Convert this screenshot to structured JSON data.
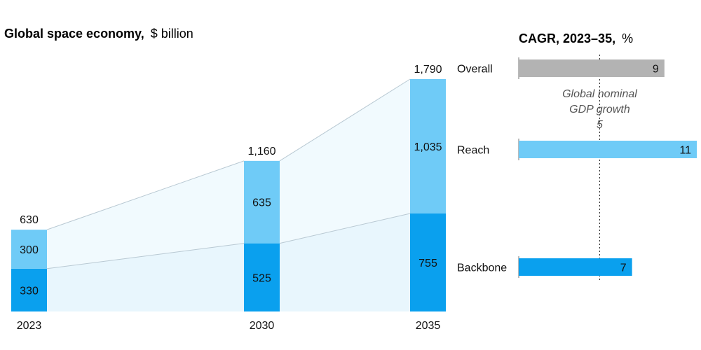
{
  "chart_data": [
    {
      "type": "bar",
      "stacked": true,
      "title": "Global space economy,",
      "title_unit": "$ billion",
      "categories": [
        "2023",
        "2030",
        "2035"
      ],
      "series": [
        {
          "name": "Backbone",
          "values": [
            330,
            525,
            755
          ],
          "color": "#0aa0ee"
        },
        {
          "name": "Reach",
          "values": [
            300,
            635,
            1035
          ],
          "color": "#6fcbf7"
        }
      ],
      "totals": [
        "630",
        "1,160",
        "1,790"
      ],
      "value_labels": {
        "Backbone": [
          "330",
          "525",
          "755"
        ],
        "Reach": [
          "300",
          "635",
          "1,035"
        ]
      },
      "area_fill_color": "#e6f5fd",
      "ylim": [
        0,
        1790
      ],
      "grid": false
    },
    {
      "type": "bar",
      "orientation": "horizontal",
      "title": "CAGR, 2023–35,",
      "title_unit": "%",
      "categories": [
        "Overall",
        "Reach",
        "Backbone"
      ],
      "values": [
        9,
        11,
        7
      ],
      "colors": [
        "#b3b3b3",
        "#6fcbf7",
        "#0aa0ee"
      ],
      "xlim": [
        0,
        11
      ],
      "reference_line": {
        "value": 5,
        "label_lines": [
          "Global nominal",
          "GDP growth"
        ],
        "value_label": "5"
      },
      "grid": false
    }
  ]
}
